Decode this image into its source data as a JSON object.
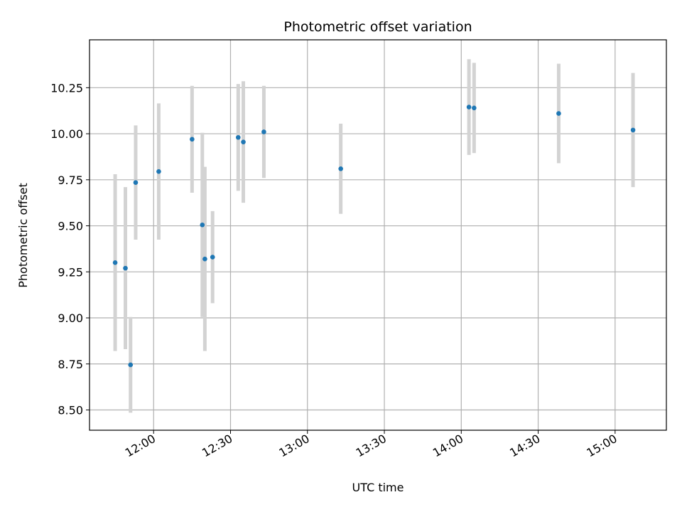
{
  "chart_data": {
    "type": "scatter",
    "title": "Photometric offset variation",
    "xlabel": "UTC time",
    "ylabel": "Photometric offset",
    "x_axis_type": "time",
    "xlim": [
      "11:35",
      "15:20"
    ],
    "ylim": [
      8.39,
      10.51
    ],
    "x_ticks": [
      "12:00",
      "12:30",
      "13:00",
      "13:30",
      "14:00",
      "14:30",
      "15:00"
    ],
    "y_ticks": [
      "8.50",
      "8.75",
      "9.00",
      "9.25",
      "9.50",
      "9.75",
      "10.00",
      "10.25"
    ],
    "grid": true,
    "point_color": "#1f77b4",
    "errorbar_color": "#d3d3d3",
    "series": [
      {
        "points": [
          {
            "x": "11:45",
            "y": 9.3,
            "err": 0.48
          },
          {
            "x": "11:49",
            "y": 9.27,
            "err": 0.44
          },
          {
            "x": "11:51",
            "y": 8.745,
            "err": 0.26
          },
          {
            "x": "11:53",
            "y": 9.735,
            "err": 0.31
          },
          {
            "x": "12:02",
            "y": 9.795,
            "err": 0.37
          },
          {
            "x": "12:15",
            "y": 9.97,
            "err": 0.29
          },
          {
            "x": "12:19",
            "y": 9.505,
            "err": 0.5
          },
          {
            "x": "12:20",
            "y": 9.32,
            "err": 0.5
          },
          {
            "x": "12:23",
            "y": 9.33,
            "err": 0.25
          },
          {
            "x": "12:33",
            "y": 9.98,
            "err": 0.29
          },
          {
            "x": "12:35",
            "y": 9.955,
            "err": 0.33
          },
          {
            "x": "12:43",
            "y": 10.01,
            "err": 0.25
          },
          {
            "x": "13:13",
            "y": 9.81,
            "err": 0.245
          },
          {
            "x": "14:03",
            "y": 10.145,
            "err": 0.26
          },
          {
            "x": "14:05",
            "y": 10.14,
            "err": 0.245
          },
          {
            "x": "14:38",
            "y": 10.11,
            "err": 0.27
          },
          {
            "x": "15:07",
            "y": 10.02,
            "err": 0.31
          }
        ]
      }
    ]
  }
}
